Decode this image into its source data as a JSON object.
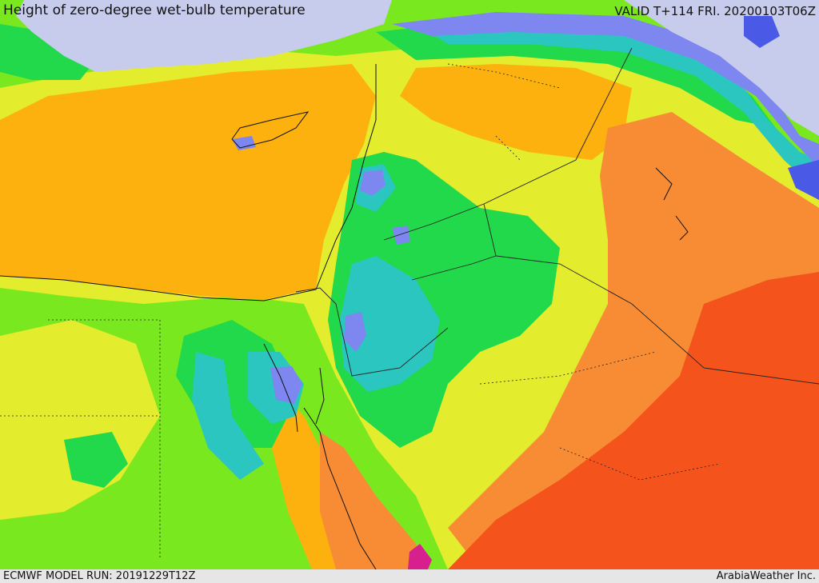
{
  "header": {
    "title": "Height of zero-degree wet-bulb temperature",
    "valid": "VALID T+114 FRI. 20200103T06Z"
  },
  "footer": {
    "model_run": "ECMWF MODEL RUN: 20191229T12Z",
    "credit": "ArabiaWeather Inc."
  },
  "colors": {
    "sea": "#c8ccec",
    "lowest": "#4a5ae6",
    "very_low": "#7e86f0",
    "low": "#2bc6c0",
    "mid_low": "#21d94a",
    "mid": "#7ae81f",
    "mid_high": "#e4ec2e",
    "high": "#fcb10e",
    "very_high": "#f78c34",
    "highest": "#f4541c",
    "extreme": "#d81f8e"
  }
}
